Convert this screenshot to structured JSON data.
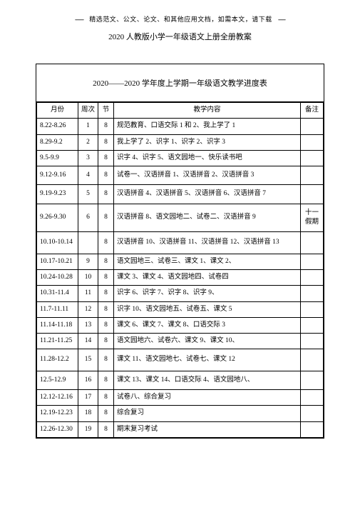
{
  "header_note": {
    "prefix_dashes": "------",
    "text": "精选范文、公文、论文、和其他应用文档，如需本文，请下载",
    "suffix_dashes": "-----"
  },
  "doc_title": "2020 人教版小学一年级语文上册全册教案",
  "table_title": "2020——2020 学年度上学期一年级语文教学进度表",
  "columns": {
    "month": "月份",
    "week": "周次",
    "section": "节",
    "content": "教学内容",
    "note": "备注"
  },
  "rows": [
    {
      "month": "8.22-8.26",
      "week": "1",
      "section": "8",
      "content": "规范教育、口语交际 1 和 2、我上学了 1",
      "note": ""
    },
    {
      "month": "8.29-9.2",
      "week": "2",
      "section": "8",
      "content": "我上学了 2、识字 1、识字 2、识字 3",
      "note": ""
    },
    {
      "month": "9.5-9.9",
      "week": "3",
      "section": "8",
      "content": "识字 4、识字 5、语文园地一、快乐读书吧",
      "note": ""
    },
    {
      "month": "9.12-9.16",
      "week": "4",
      "section": "8",
      "content": "试卷一、汉语拼音 1、汉语拼音 2、汉语拼音 3",
      "note": "",
      "tall": true
    },
    {
      "month": "9.19-9.23",
      "week": "5",
      "section": "8",
      "content": "汉语拼音 4、汉语拼音 5、汉语拼音 6、汉语拼音 7",
      "note": "",
      "tall": true
    },
    {
      "month": "9.26-9.30",
      "week": "6",
      "section": "8",
      "content": "汉语拼音 8、语文园地二、试卷二、汉语拼音 9",
      "note": "十一假期",
      "tall": true
    },
    {
      "month": "10.10-10.14",
      "week": "",
      "section": "8",
      "content": "汉语拼音 10、汉语拼音 11、汉语拼音 12、汉语拼音 13",
      "note": "",
      "taller": true
    },
    {
      "month": "10.17-10.21",
      "week": "9",
      "section": "8",
      "content": "语文园地三、试卷三、课文 1、课文 2、",
      "note": ""
    },
    {
      "month": "10.24-10.28",
      "week": "10",
      "section": "8",
      "content": "课文 3、课文 4、语文园地四、试卷四",
      "note": ""
    },
    {
      "month": "10.31-11.4",
      "week": "11",
      "section": "8",
      "content": "识字 6、识字 7、识字 8、识字 9、",
      "note": ""
    },
    {
      "month": "11.7-11.11",
      "week": "12",
      "section": "8",
      "content": "识字 10、语文园地五、试卷五、课文  5",
      "note": ""
    },
    {
      "month": "11.14-11.18",
      "week": "13",
      "section": "8",
      "content": "课文 6、课文 7、课文 8、口语交际 3",
      "note": ""
    },
    {
      "month": "11.21-11.25",
      "week": "14",
      "section": "8",
      "content": "语文园地六、试卷六、课文  9、课文 10、",
      "note": ""
    },
    {
      "month": "11.28-12.2",
      "week": "15",
      "section": "8",
      "content": "课文 11、语文园地七、试卷七、课文  12",
      "note": "",
      "taller": true
    },
    {
      "month": "12.5-12.9",
      "week": "16",
      "section": "8",
      "content": "课文 13、课文 14、口语交际 4、语文园地八、",
      "note": "",
      "tall": true
    },
    {
      "month": "12.12-12.16",
      "week": "17",
      "section": "8",
      "content": "试卷八、综合复习",
      "note": ""
    },
    {
      "month": "12.19-12.23",
      "week": "18",
      "section": "8",
      "content": "综合复习",
      "note": ""
    },
    {
      "month": "12.26-12.30",
      "week": "19",
      "section": "8",
      "content": "期末复习考试",
      "note": ""
    }
  ]
}
